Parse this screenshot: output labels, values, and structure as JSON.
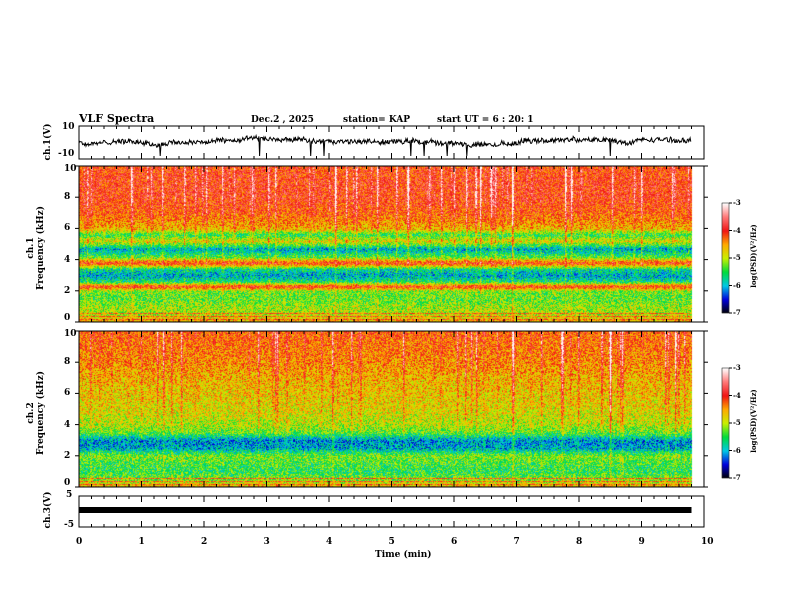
{
  "header": {
    "title": "VLF Spectra",
    "date": "Dec.2 , 2025",
    "station": "station= KAP",
    "start": "start UT =  6 : 20: 1"
  },
  "colors": {
    "axis": "#000000",
    "background": "#ffffff"
  },
  "chart_data": [
    {
      "type": "line",
      "name": "ch1",
      "ylabel": "ch.1(V)",
      "ylim": [
        -10,
        10
      ],
      "yticks": [
        "10",
        "-10"
      ],
      "xlim": [
        0,
        10
      ],
      "note": "noisy waveform around 0 V"
    },
    {
      "type": "heatmap",
      "name": "ch1-spectrogram",
      "ylabel": "ch.1\nFrequency (kHz)",
      "ylabel_top": "ch.1",
      "ylabel_bottom": "Frequency (kHz)",
      "ylim": [
        0,
        10
      ],
      "yticks": [
        "0",
        "2",
        "4",
        "6",
        "8",
        "10"
      ],
      "xlim": [
        0,
        10
      ],
      "data_end_min": 9.8,
      "profile_khz": [
        0,
        0.5,
        1,
        1.5,
        2,
        2.3,
        2.6,
        3,
        3.4,
        3.8,
        4.2,
        4.7,
        5.2,
        5.6,
        6,
        7,
        8,
        9,
        10
      ],
      "profile_logpsd": [
        -4.5,
        -5,
        -5.1,
        -5.3,
        -5.2,
        -4,
        -5.6,
        -6,
        -5.7,
        -4,
        -5.4,
        -6,
        -4.8,
        -5.5,
        -4.6,
        -4.2,
        -4,
        -4,
        -4.1
      ],
      "colorbar": {
        "label": "log(PSD)(V²/Hz)",
        "ticks": [
          "-3",
          "-4",
          "-5",
          "-6",
          "-7"
        ],
        "range": [
          -7,
          -3
        ]
      }
    },
    {
      "type": "heatmap",
      "name": "ch2-spectrogram",
      "ylabel_top": "ch.2",
      "ylabel_bottom": "Frequency (kHz)",
      "ylim": [
        0,
        10
      ],
      "yticks": [
        "0",
        "2",
        "4",
        "6",
        "8",
        "10"
      ],
      "xlim": [
        0,
        10
      ],
      "data_end_min": 9.8,
      "profile_khz": [
        0,
        0.5,
        1,
        1.5,
        2,
        2.5,
        3,
        3.5,
        4,
        5,
        6,
        7,
        8,
        9,
        10
      ],
      "profile_logpsd": [
        -4.5,
        -5.2,
        -5.5,
        -5.4,
        -5.2,
        -6,
        -6.1,
        -5.3,
        -5,
        -4.8,
        -4.7,
        -4.6,
        -4.4,
        -4.3,
        -4.2
      ],
      "colorbar": {
        "label": "log(PSD)(V²/Hz)",
        "ticks": [
          "-3",
          "-4",
          "-5",
          "-6",
          "-7"
        ],
        "range": [
          -7,
          -3
        ]
      }
    },
    {
      "type": "line",
      "name": "ch3",
      "ylabel": "ch.3(V)",
      "ylim": [
        -5,
        5
      ],
      "yticks": [
        "5",
        "-5"
      ],
      "xlim": [
        0,
        10
      ],
      "level_v": 0.5
    }
  ],
  "xaxis": {
    "label": "Time (min)",
    "ticks": [
      "0",
      "1",
      "2",
      "3",
      "4",
      "5",
      "6",
      "7",
      "8",
      "9",
      "10"
    ]
  }
}
